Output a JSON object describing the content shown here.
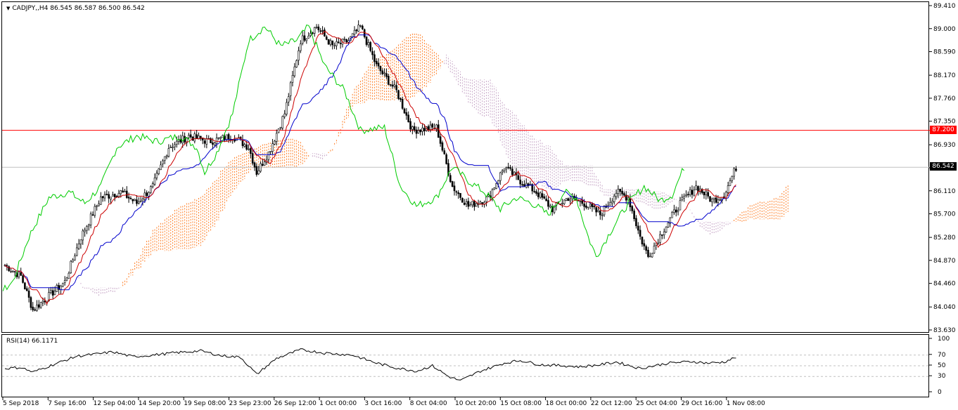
{
  "window": {
    "symbol_line": "CADJPY,,H4  86.545 86.587 86.500 86.542",
    "indicator_label": "RSI(14) 66.1171"
  },
  "price_axis": {
    "ticks": [
      "89.410",
      "89.000",
      "88.590",
      "88.170",
      "87.760",
      "87.350",
      "86.930",
      "86.520",
      "86.110",
      "85.700",
      "85.280",
      "84.870",
      "84.460",
      "84.040",
      "83.630"
    ],
    "min": 83.63,
    "max": 89.41,
    "current_price_label": "86.542",
    "current_price": 86.542,
    "hline_label": "87.200",
    "hline_price": 87.2,
    "hline_color": "#ff0000"
  },
  "rsi_axis": {
    "ticks": [
      "100",
      "70",
      "50",
      "30",
      "0"
    ],
    "levels": [
      70,
      50,
      30
    ]
  },
  "time_axis": {
    "labels": [
      "5 Sep 2018",
      "7 Sep 16:00",
      "12 Sep 04:00",
      "14 Sep 20:00",
      "19 Sep 08:00",
      "23 Sep 23:00",
      "26 Sep 12:00",
      "1 Oct 00:00",
      "3 Oct 16:00",
      "8 Oct 04:00",
      "10 Oct 20:00",
      "15 Oct 08:00",
      "18 Oct 00:00",
      "22 Oct 12:00",
      "25 Oct 04:00",
      "29 Oct 16:00",
      "1 Nov 08:00"
    ]
  },
  "colors": {
    "tenkan": "#cc0000",
    "kijun": "#0000cc",
    "chikou": "#00cc00",
    "cloud_up": "#ff7f27",
    "cloud_down": "#c8a8c8",
    "candle": "#000000",
    "grid": "#c0c0c0",
    "current_tag_bg": "#000000",
    "hline_tag_bg": "#ff0000"
  },
  "chart_data": {
    "type": "candlestick",
    "symbol": "CADJPY",
    "timeframe": "H4",
    "ylim": [
      83.63,
      89.41
    ],
    "anchors": [
      [
        0,
        84.8
      ],
      [
        8,
        84.6
      ],
      [
        14,
        84.0
      ],
      [
        22,
        84.25
      ],
      [
        30,
        84.5
      ],
      [
        38,
        85.3
      ],
      [
        48,
        86.0
      ],
      [
        58,
        86.1
      ],
      [
        66,
        85.9
      ],
      [
        74,
        86.2
      ],
      [
        82,
        86.9
      ],
      [
        92,
        87.1
      ],
      [
        102,
        87.0
      ],
      [
        114,
        87.1
      ],
      [
        122,
        86.9
      ],
      [
        126,
        86.45
      ],
      [
        132,
        86.8
      ],
      [
        140,
        87.5
      ],
      [
        148,
        88.8
      ],
      [
        156,
        89.05
      ],
      [
        164,
        88.7
      ],
      [
        172,
        88.8
      ],
      [
        178,
        89.05
      ],
      [
        186,
        88.35
      ],
      [
        196,
        87.9
      ],
      [
        204,
        87.2
      ],
      [
        216,
        87.25
      ],
      [
        224,
        86.2
      ],
      [
        232,
        85.85
      ],
      [
        242,
        86.0
      ],
      [
        250,
        86.55
      ],
      [
        258,
        86.3
      ],
      [
        266,
        86.1
      ],
      [
        274,
        85.8
      ],
      [
        282,
        86.0
      ],
      [
        290,
        85.9
      ],
      [
        298,
        85.7
      ],
      [
        306,
        86.1
      ],
      [
        312,
        86.0
      ],
      [
        318,
        85.3
      ],
      [
        322,
        84.95
      ],
      [
        330,
        85.45
      ],
      [
        338,
        85.9
      ],
      [
        346,
        86.2
      ],
      [
        354,
        85.95
      ],
      [
        360,
        86.05
      ],
      [
        366,
        86.54
      ]
    ],
    "rsi_anchors": [
      [
        0,
        45
      ],
      [
        8,
        47
      ],
      [
        14,
        38
      ],
      [
        24,
        52
      ],
      [
        36,
        68
      ],
      [
        46,
        72
      ],
      [
        54,
        76
      ],
      [
        64,
        67
      ],
      [
        74,
        70
      ],
      [
        84,
        74
      ],
      [
        98,
        78
      ],
      [
        108,
        69
      ],
      [
        118,
        66
      ],
      [
        126,
        34
      ],
      [
        136,
        64
      ],
      [
        148,
        80
      ],
      [
        160,
        74
      ],
      [
        174,
        70
      ],
      [
        186,
        55
      ],
      [
        196,
        46
      ],
      [
        206,
        40
      ],
      [
        214,
        50
      ],
      [
        222,
        30
      ],
      [
        228,
        22
      ],
      [
        238,
        40
      ],
      [
        250,
        55
      ],
      [
        258,
        60
      ],
      [
        268,
        52
      ],
      [
        280,
        50
      ],
      [
        288,
        48
      ],
      [
        298,
        52
      ],
      [
        306,
        57
      ],
      [
        318,
        45
      ],
      [
        332,
        55
      ],
      [
        344,
        58
      ],
      [
        352,
        55
      ],
      [
        360,
        57
      ],
      [
        366,
        66
      ]
    ]
  }
}
